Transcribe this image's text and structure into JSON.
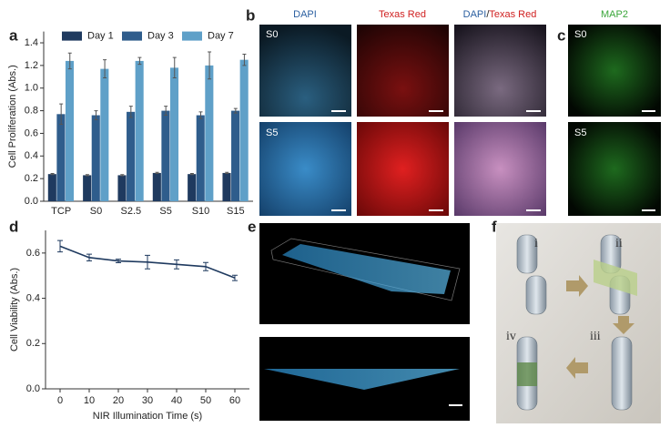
{
  "chart_data": [
    {
      "type": "bar",
      "panel": "a",
      "y_label": "Cell Proliferation (Abs.)",
      "categories": [
        "TCP",
        "S0",
        "S2.5",
        "S5",
        "S10",
        "S15"
      ],
      "series": [
        {
          "name": "Day 1",
          "color": "#1f3a5f",
          "values": [
            0.24,
            0.23,
            0.23,
            0.25,
            0.24,
            0.25
          ],
          "errors": [
            0.005,
            0.005,
            0.005,
            0.005,
            0.005,
            0.005
          ]
        },
        {
          "name": "Day 3",
          "color": "#2f5d8c",
          "values": [
            0.77,
            0.76,
            0.79,
            0.8,
            0.76,
            0.8
          ],
          "errors": [
            0.09,
            0.04,
            0.05,
            0.04,
            0.03,
            0.02
          ]
        },
        {
          "name": "Day 7",
          "color": "#5fa0c8",
          "values": [
            1.24,
            1.17,
            1.24,
            1.18,
            1.2,
            1.25
          ],
          "errors": [
            0.07,
            0.08,
            0.03,
            0.09,
            0.12,
            0.05
          ]
        }
      ],
      "ylim": [
        0,
        1.5
      ],
      "yticks": [
        {
          "value": 0,
          "label": "0.0"
        },
        0.2,
        0.4,
        0.6,
        0.8,
        {
          "value": 1,
          "label": "1.0"
        },
        1.2,
        1.4
      ],
      "legend": "top"
    },
    {
      "type": "line",
      "panel": "d",
      "x_label": "NIR Illumination Time (s)",
      "y_label": "Cell Viability (Abs.)",
      "x": [
        0,
        10,
        20,
        30,
        40,
        50,
        60
      ],
      "series": [
        {
          "color": "#1f3a5f",
          "values": [
            0.63,
            0.58,
            0.565,
            0.56,
            0.55,
            0.54,
            0.49
          ],
          "errors": [
            0.025,
            0.015,
            0.008,
            0.03,
            0.02,
            0.018,
            0.012
          ]
        }
      ],
      "xlim": [
        -5,
        65
      ],
      "xticks": [
        0,
        10,
        20,
        30,
        40,
        50,
        60
      ],
      "ylim": [
        0,
        0.7
      ],
      "yticks": [
        {
          "value": 0,
          "label": "0.0"
        },
        0.2,
        0.4,
        0.6
      ]
    }
  ],
  "panel_b": {
    "label": "b",
    "col1": "DAPI",
    "col2": "Texas Red",
    "col3_part1": "DAPI",
    "col3_sep": "/",
    "col3_part2": "Texas Red",
    "row1": "S0",
    "row2": "S5"
  },
  "panel_c": {
    "label": "c",
    "title": "MAP2",
    "row1": "S0",
    "row2": "S5"
  },
  "panel_e": {
    "label": "e"
  },
  "panel_f": {
    "label": "f",
    "steps": [
      "i",
      "ii",
      "iii",
      "iv"
    ]
  }
}
